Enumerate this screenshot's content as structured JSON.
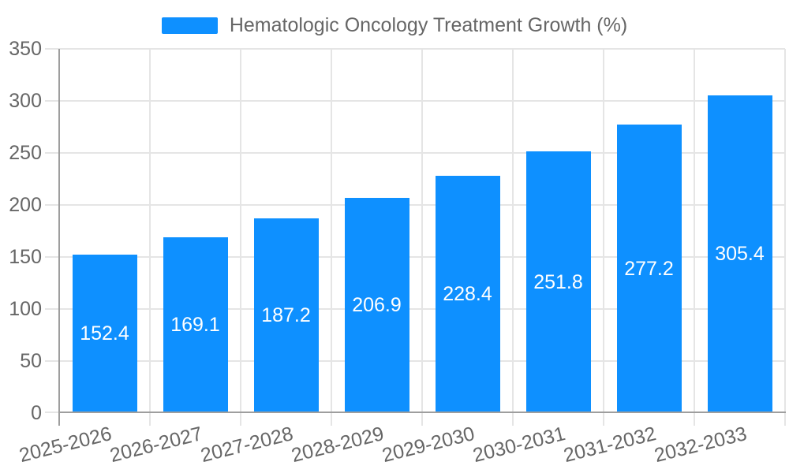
{
  "legend": {
    "label": "Hematologic Oncology Treatment Growth (%)"
  },
  "chart_data": {
    "type": "bar",
    "title": "Hematologic Oncology Treatment Growth (%)",
    "categories": [
      "2025-2026",
      "2026-2027",
      "2027-2028",
      "2028-2029",
      "2029-2030",
      "2030-2031",
      "2031-2032",
      "2032-2033"
    ],
    "series": [
      {
        "name": "Hematologic Oncology Treatment Growth (%)",
        "values": [
          152.4,
          169.1,
          187.2,
          206.9,
          228.4,
          251.8,
          277.2,
          305.4
        ]
      }
    ],
    "xlabel": "",
    "ylabel": "",
    "ylim": [
      0,
      350
    ],
    "yticks": [
      0,
      50,
      100,
      150,
      200,
      250,
      300,
      350
    ],
    "grid": true,
    "legend_position": "top-center",
    "value_label_position": "inside-middle"
  },
  "colors": {
    "bar": "#0E90FF",
    "gridline": "#E5E5E5",
    "axis_line": "#9E9E9E",
    "tick_text": "#666666",
    "legend_text": "#666666",
    "value_label": "#FFFFFF",
    "background": "#FFFFFF"
  }
}
